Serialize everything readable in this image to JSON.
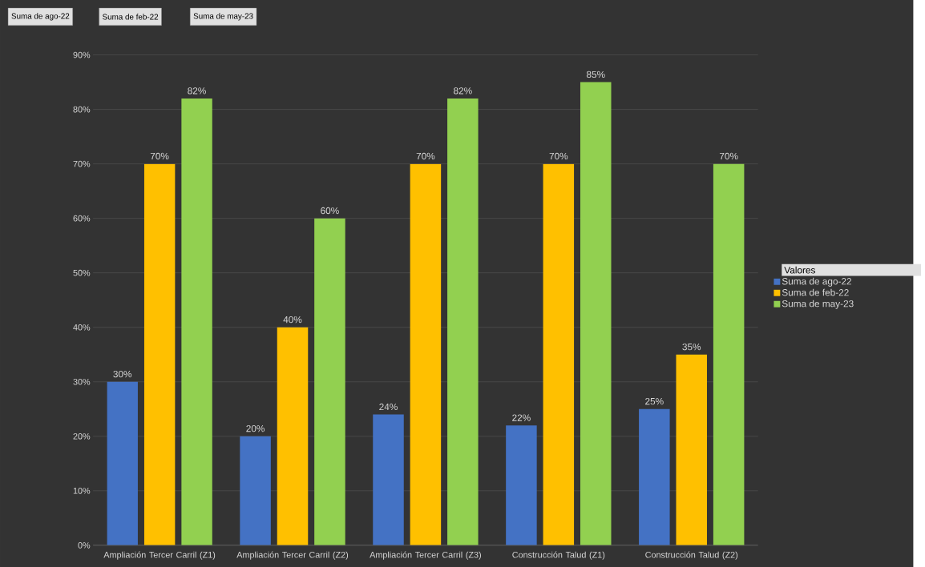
{
  "chart_data": {
    "type": "bar",
    "categories": [
      "Ampliación Tercer Carril (Z1)",
      "Ampliación Tercer Carril (Z2)",
      "Ampliación Tercer Carril (Z3)",
      "Construcción Talud (Z1)",
      "Construcción Talud (Z2)"
    ],
    "series": [
      {
        "name": "Suma de ago-22",
        "color": "#4472c4",
        "values": [
          30,
          20,
          24,
          22,
          25
        ],
        "value_labels": [
          "30%",
          "20%",
          "24%",
          "22%",
          "25%"
        ]
      },
      {
        "name": "Suma de feb-22",
        "color": "#ffc000",
        "values": [
          70,
          40,
          70,
          70,
          35
        ],
        "value_labels": [
          "70%",
          "40%",
          "70%",
          "70%",
          "35%"
        ]
      },
      {
        "name": "Suma de may-23",
        "color": "#92d050",
        "values": [
          82,
          60,
          82,
          85,
          70
        ],
        "value_labels": [
          "82%",
          "60%",
          "82%",
          "85%",
          "70%"
        ]
      }
    ],
    "ylim": [
      0,
      90
    ],
    "yticks": [
      {
        "value": 0,
        "label": "0%"
      },
      {
        "value": 10,
        "label": "10%"
      },
      {
        "value": 20,
        "label": "20%"
      },
      {
        "value": 30,
        "label": "30%"
      },
      {
        "value": 40,
        "label": "40%"
      },
      {
        "value": 50,
        "label": "50%"
      },
      {
        "value": 60,
        "label": "60%"
      },
      {
        "value": 70,
        "label": "70%"
      },
      {
        "value": 80,
        "label": "80%"
      },
      {
        "value": 90,
        "label": "90%"
      }
    ],
    "grid": "y",
    "legend": "right",
    "legend_title": "Valores",
    "annotations": [
      "Suma de ago-22",
      "Suma de feb-22",
      "Suma de may-23"
    ]
  }
}
